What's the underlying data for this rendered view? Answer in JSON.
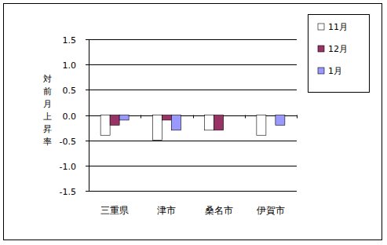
{
  "chart_data": {
    "type": "bar",
    "y_label": "対前月上昇率",
    "categories": [
      "三重県",
      "津市",
      "桑名市",
      "伊賀市"
    ],
    "series": [
      {
        "name": "11月",
        "color": "#ffffff",
        "values": [
          -0.4,
          -0.5,
          -0.3,
          -0.4
        ]
      },
      {
        "name": "12月",
        "color": "#993366",
        "values": [
          -0.2,
          -0.1,
          -0.3,
          0.0
        ]
      },
      {
        "name": "1月",
        "color": "#9999ff",
        "values": [
          -0.1,
          -0.3,
          0.0,
          -0.2
        ]
      }
    ],
    "ylim": [
      -1.5,
      1.5
    ],
    "yticks": [
      -1.5,
      {
        "value": -1,
        "label": "-1.0"
      },
      -0.5,
      {
        "value": 0,
        "label": "0.0"
      },
      0.5,
      {
        "value": 1,
        "label": "1.0"
      },
      1.5
    ],
    "grid": true,
    "legend": "top-right"
  }
}
